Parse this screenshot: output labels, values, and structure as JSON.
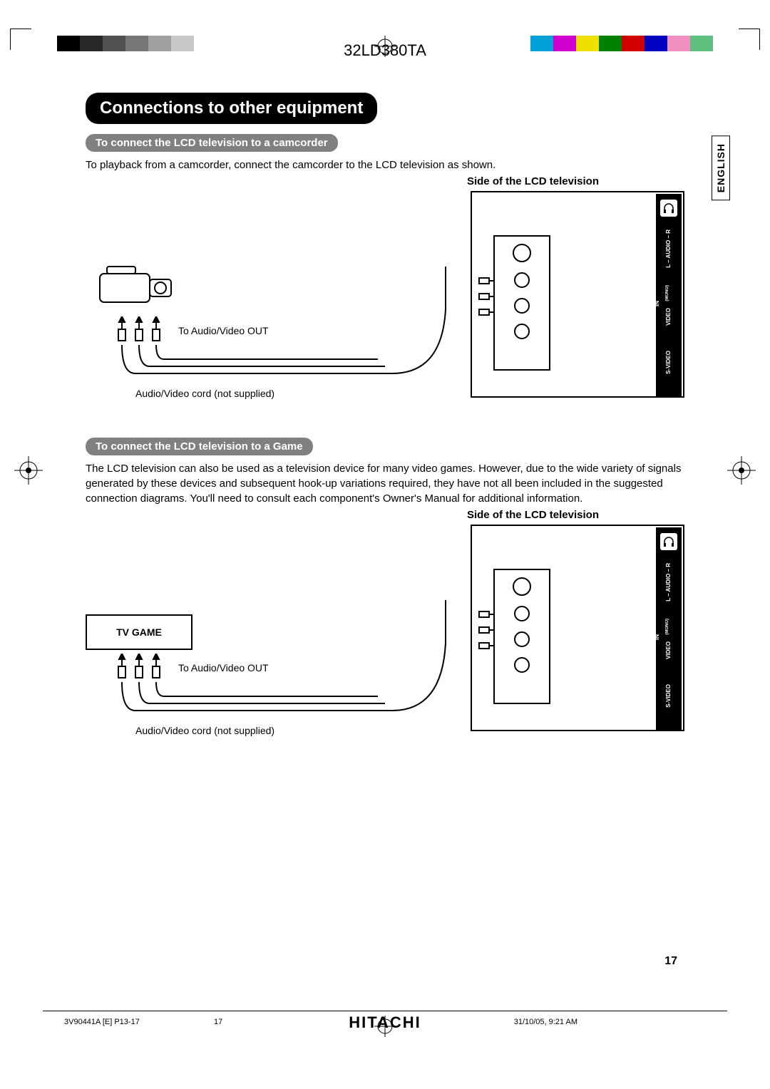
{
  "header": {
    "model": "32LD380TA",
    "color_swatches_left": [
      "#000000",
      "#282828",
      "#505050",
      "#787878",
      "#a0a0a0",
      "#c8c8c8"
    ],
    "color_swatches_right": [
      "#00a0d8",
      "#d000d0",
      "#f0e000",
      "#008000",
      "#d00000",
      "#0000c0",
      "#f090c0",
      "#60c080"
    ]
  },
  "lang_tab": "ENGLISH",
  "title": "Connections to other equipment",
  "section1": {
    "heading": "To connect the LCD television to a camcorder",
    "body": "To playback from a camcorder, connect the camcorder to the LCD television as shown.",
    "side_label": "Side of the LCD television",
    "av_out": "To Audio/Video OUT",
    "cord_note": "Audio/Video cord (not supplied)",
    "panel_labels": {
      "audio": "L – AUDIO – R",
      "mono": "(MONO)",
      "video": "VIDEO",
      "in": "IN",
      "svideo": "S-VIDEO"
    }
  },
  "section2": {
    "heading": "To connect the LCD television to a Game",
    "body": "The LCD television can also be used as a television device for many video games. However, due to the wide variety of signals generated by these devices and subsequent hook-up variations required, they have not all been included in the suggested connection diagrams. You'll need to consult each component's Owner's Manual for additional information.",
    "side_label": "Side of the LCD television",
    "device_label": "TV GAME",
    "av_out": "To Audio/Video OUT",
    "cord_note": "Audio/Video cord (not supplied)",
    "panel_labels": {
      "audio": "L – AUDIO – R",
      "mono": "(MONO)",
      "video": "VIDEO",
      "in": "IN",
      "svideo": "S-VIDEO"
    }
  },
  "page_number": "17",
  "footer": {
    "doc_code": "3V90441A [E] P13-17",
    "page": "17",
    "timestamp": "31/10/05, 9:21 AM",
    "brand": "HITACHI"
  },
  "styles": {
    "title_bg": "#000000",
    "title_fg": "#ffffff",
    "sub_bg": "#808080",
    "sub_fg": "#ffffff",
    "panel_black": "#000000"
  }
}
